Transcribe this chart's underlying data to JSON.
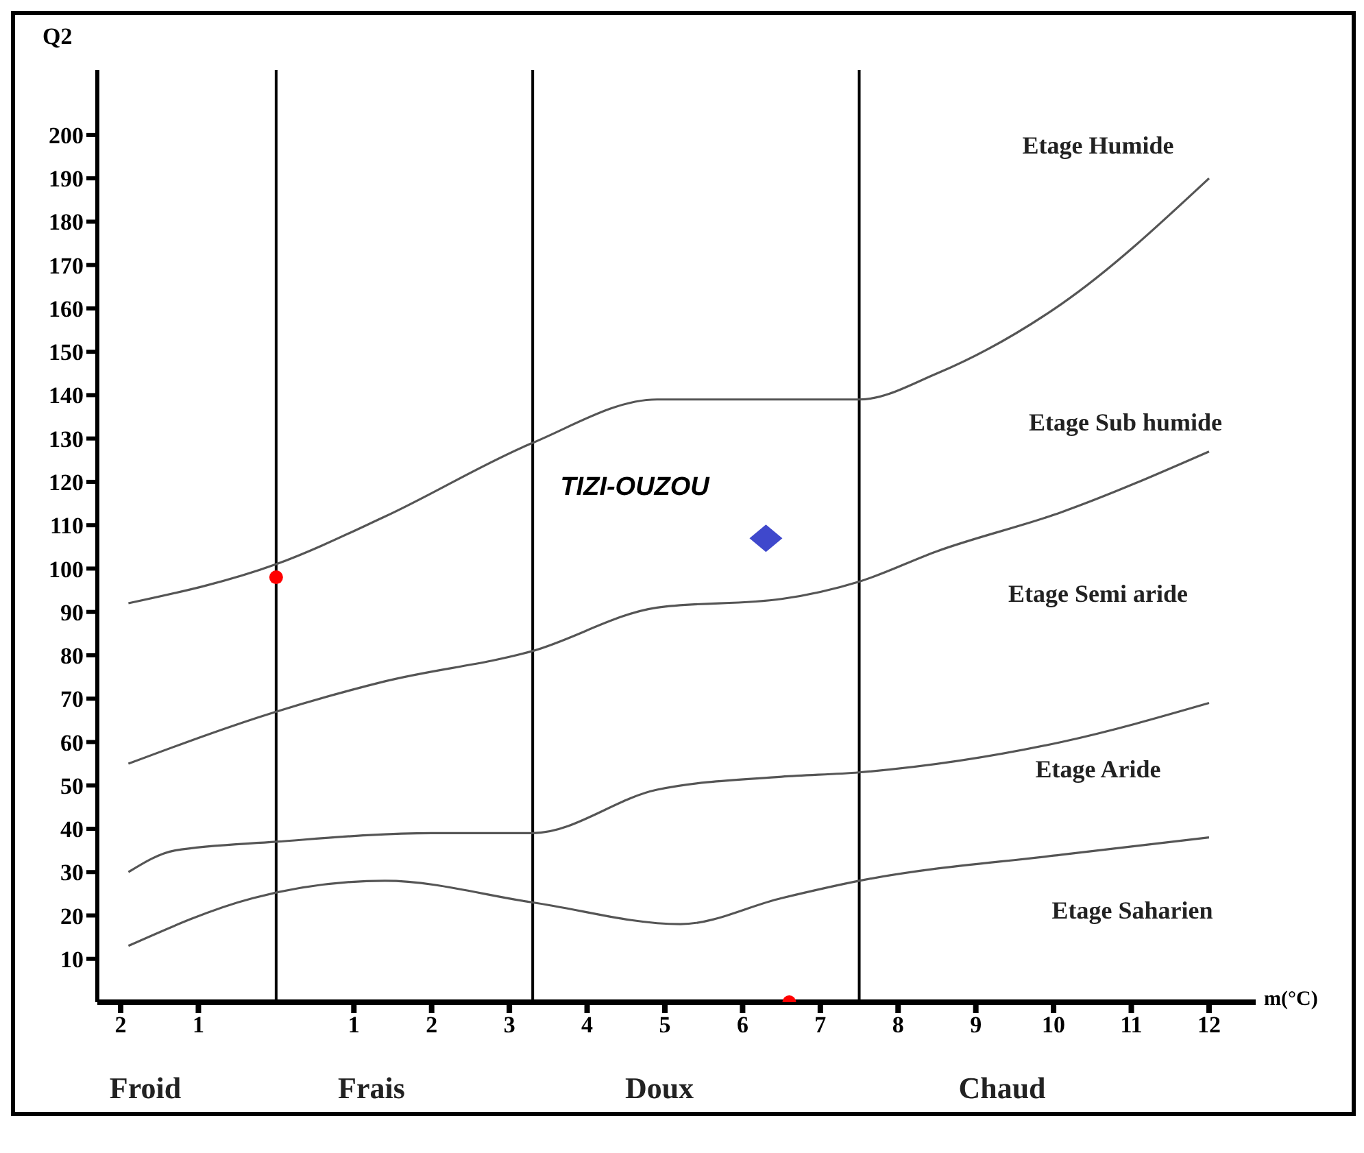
{
  "chart_data": {
    "type": "line",
    "xlabel": "m(°C)",
    "ylabel": "Q2",
    "xlim": [
      -2.3,
      12.6
    ],
    "ylim": [
      0,
      215
    ],
    "xticks": [
      {
        "value": -2,
        "label": "2"
      },
      {
        "value": -1,
        "label": "1"
      },
      1,
      2,
      3,
      4,
      5,
      6,
      7,
      8,
      9,
      10,
      11,
      12
    ],
    "yticks": [
      10,
      20,
      30,
      40,
      50,
      60,
      70,
      80,
      90,
      100,
      110,
      120,
      130,
      140,
      150,
      160,
      170,
      180,
      190,
      200
    ],
    "grid": false,
    "legend": false,
    "line_style": "solid",
    "marker": "none",
    "series": [
      {
        "color": "#555555",
        "x": [
          -1.9,
          0,
          1.4,
          3.3,
          4.9,
          6.5,
          7.5,
          8.5,
          10.1,
          12
        ],
        "values": [
          92,
          101,
          112,
          129,
          139,
          139,
          139,
          145,
          161,
          190
        ]
      },
      {
        "color": "#555555",
        "x": [
          -1.9,
          0,
          1.4,
          3.3,
          4.9,
          6.5,
          7.5,
          8.5,
          10.1,
          12
        ],
        "values": [
          55,
          67,
          74,
          81,
          91,
          93,
          97,
          104,
          113,
          127
        ]
      },
      {
        "color": "#555555",
        "x": [
          -1.9,
          -1.3,
          0,
          2,
          3.3,
          4.9,
          6.5,
          7.5,
          10.1,
          12
        ],
        "values": [
          30,
          35,
          37,
          39,
          39,
          49,
          52,
          53,
          60,
          69
        ]
      },
      {
        "color": "#555555",
        "x": [
          -1.9,
          -0.3,
          1.4,
          3.3,
          5.2,
          6.5,
          7.5,
          10.1,
          12
        ],
        "values": [
          13,
          24,
          28,
          23,
          18,
          24,
          28,
          34,
          38
        ]
      },
      {
        "type": "scatter",
        "name": "TIZI-OUZOU",
        "color": "#3f48cc",
        "marker": "diamond",
        "x": [
          6.3
        ],
        "values": [
          107
        ]
      },
      {
        "type": "scatter",
        "color": "#ff0000",
        "marker": "circle",
        "x": [
          0,
          6.6
        ],
        "values": [
          98,
          0
        ]
      }
    ],
    "ref_lines": [
      {
        "axis": "x",
        "value": 0,
        "color": "#000000"
      },
      {
        "axis": "x",
        "value": 3.3,
        "color": "#000000"
      },
      {
        "axis": "x",
        "value": 7.5,
        "color": "#000000"
      }
    ],
    "annotations": [
      "Etage Humide",
      "Etage Sub humide",
      "Etage Semi aride",
      "Etage Aride",
      "Etage Saharien",
      "Froid",
      "Frais",
      "Doux",
      "Chaud"
    ]
  }
}
